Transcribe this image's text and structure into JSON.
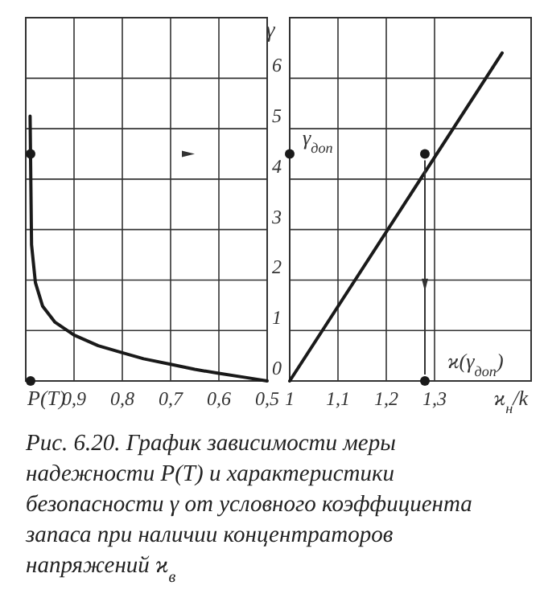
{
  "chart_data": [
    {
      "type": "line",
      "xlabel": "P(T)",
      "xlim": [
        1,
        0.5
      ],
      "xticks": [
        {
          "value": 0.9,
          "label": "0,9"
        },
        {
          "value": 0.8,
          "label": "0,8"
        },
        {
          "value": 0.7,
          "label": "0,7"
        },
        {
          "value": 0.6,
          "label": "0,6"
        },
        {
          "value": 0.5,
          "label": "0,5"
        }
      ],
      "ylim": [
        0,
        7.2
      ],
      "yticks": [
        0,
        1,
        2,
        3,
        4,
        5,
        6
      ],
      "grid": true,
      "tick_labels": "x",
      "series": [
        {
          "color": "#1a1a1a",
          "x": [
            0.991,
            0.988,
            0.98,
            0.965,
            0.94,
            0.9,
            0.85,
            0.8,
            0.756,
            0.7,
            0.65,
            0.6,
            0.545,
            0.5
          ],
          "values": [
            5.25,
            2.7,
            1.95,
            1.48,
            1.17,
            0.91,
            0.7,
            0.56,
            0.44,
            0.33,
            0.23,
            0.15,
            0.07,
            0
          ]
        },
        {
          "type": "scatter",
          "color": "#1a1a1a",
          "marker": "circle",
          "x": [
            0.99,
            0.99
          ],
          "values": [
            4.5,
            0
          ]
        }
      ]
    },
    {
      "type": "line",
      "xlabel": "ϰ$_{н}$/k",
      "ylabel": "γ",
      "xlim": [
        1,
        1.5
      ],
      "xticks": [
        1,
        {
          "value": 1.1,
          "label": "1,1"
        },
        {
          "value": 1.2,
          "label": "1,2"
        },
        {
          "value": 1.3,
          "label": "1,3"
        }
      ],
      "ylim": [
        0,
        7.2
      ],
      "yticks": [
        0,
        1,
        2,
        3,
        4,
        5,
        6
      ],
      "grid": true,
      "series": [
        {
          "color": "#1a1a1a",
          "x": [
            1,
            1.44
          ],
          "values": [
            0,
            6.5
          ]
        },
        {
          "type": "scatter",
          "color": "#1a1a1a",
          "marker": "circle",
          "x": [
            1,
            1.28,
            1.28
          ],
          "values": [
            4.5,
            4.5,
            0
          ]
        }
      ],
      "annotations": [
        {
          "text": "γ$_{доп}$",
          "x": 1,
          "y": 4.5
        },
        {
          "text": "ϰ(γ$_{доп}$)",
          "x": 1.28,
          "y": 0
        },
        "Рис. 6.20. График зависимости меры надежности P(T) и характеристики безопасности γ от условного коэффициента запаса при наличии концентраторов напряжений ϰ$_{в}$"
      ]
    }
  ]
}
